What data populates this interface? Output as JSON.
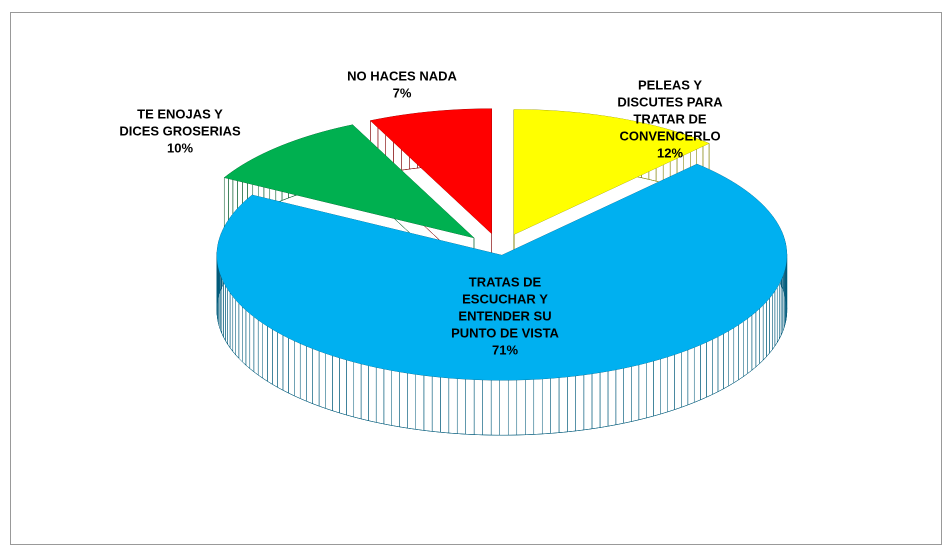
{
  "chart_data": {
    "type": "pie3d",
    "categories": [
      [
        "PELEAS Y",
        "DISCUTES PARA",
        "TRATAR DE",
        "CONVENCERLO"
      ],
      [
        "TRATAS DE",
        "ESCUCHAR Y",
        "ENTENDER SU",
        "PUNTO DE VISTA"
      ],
      [
        "TE ENOJAS Y",
        "DICES GROSERIAS"
      ],
      [
        "NO HACES NADA"
      ]
    ],
    "values": [
      12,
      71,
      10,
      7
    ],
    "value_labels": [
      "12%",
      "71%",
      "10%",
      "7%"
    ],
    "colors": [
      "#ffff00",
      "#00b0f0",
      "#00b050",
      "#ff0000"
    ],
    "side_colors": [
      "#808000",
      "#005a7a",
      "#005a28",
      "#800000"
    ]
  }
}
